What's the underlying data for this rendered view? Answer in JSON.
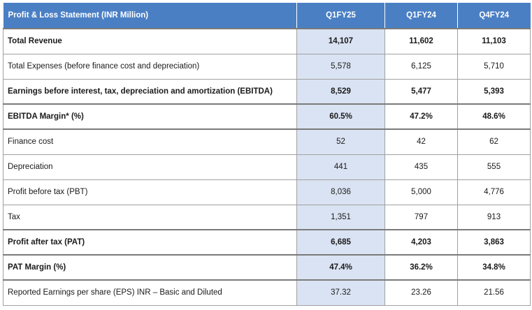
{
  "table": {
    "header": [
      "Profit & Loss Statement (INR Million)",
      "Q1FY25",
      "Q1FY24",
      "Q4FY24"
    ],
    "rows": [
      {
        "label": "Total Revenue",
        "values": [
          "14,107",
          "11,602",
          "11,103"
        ],
        "bold": true
      },
      {
        "label": "Total Expenses (before finance cost and depreciation)",
        "values": [
          "5,578",
          "6,125",
          "5,710"
        ],
        "bold": false
      },
      {
        "label": "Earnings before interest, tax, depreciation and amortization (EBITDA)",
        "values": [
          "8,529",
          "5,477",
          "5,393"
        ],
        "bold": true
      },
      {
        "label": "EBITDA Margin* (%)",
        "values": [
          "60.5%",
          "47.2%",
          "48.6%"
        ],
        "bold": true
      },
      {
        "label": "Finance cost",
        "values": [
          "52",
          "42",
          "62"
        ],
        "bold": false
      },
      {
        "label": "Depreciation",
        "values": [
          "441",
          "435",
          "555"
        ],
        "bold": false
      },
      {
        "label": "Profit before tax (PBT)",
        "values": [
          "8,036",
          "5,000",
          "4,776"
        ],
        "bold": false
      },
      {
        "label": "Tax",
        "values": [
          "1,351",
          "797",
          "913"
        ],
        "bold": false
      },
      {
        "label": "Profit after tax (PAT)",
        "values": [
          "6,685",
          "4,203",
          "3,863"
        ],
        "bold": true
      },
      {
        "label": "PAT Margin (%)",
        "values": [
          "47.4%",
          "36.2%",
          "34.8%"
        ],
        "bold": true
      },
      {
        "label": "Reported Earnings per share (EPS) INR – Basic and Diluted",
        "values": [
          "37.32",
          "23.26",
          "21.56"
        ],
        "bold": false
      }
    ]
  }
}
